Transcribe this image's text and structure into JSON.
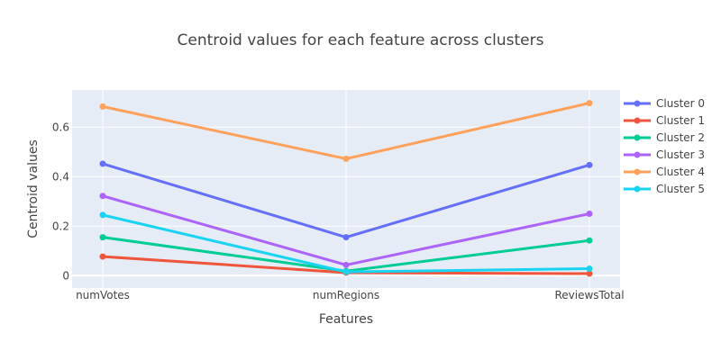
{
  "chart_data": {
    "type": "line",
    "title": "Centroid values for each feature across clusters",
    "xlabel": "Features",
    "ylabel": "Centroid values",
    "categories": [
      "numVotes",
      "numRegions",
      "ReviewsTotal"
    ],
    "y_ticks": [
      0,
      0.2,
      0.4,
      0.6
    ],
    "y_tick_labels": [
      "0",
      "0.2",
      "0.4",
      "0.6"
    ],
    "ylim": [
      -0.05,
      0.75
    ],
    "grid": true,
    "legend_position": "right",
    "series": [
      {
        "name": "Cluster 0",
        "color": "#636efa",
        "values": [
          0.452,
          0.155,
          0.447
        ]
      },
      {
        "name": "Cluster 1",
        "color": "#ef553b",
        "values": [
          0.077,
          0.012,
          0.008
        ]
      },
      {
        "name": "Cluster 2",
        "color": "#00cc96",
        "values": [
          0.155,
          0.018,
          0.142
        ]
      },
      {
        "name": "Cluster 3",
        "color": "#ab63fa",
        "values": [
          0.322,
          0.043,
          0.25
        ]
      },
      {
        "name": "Cluster 4",
        "color": "#ffa15a",
        "values": [
          0.683,
          0.472,
          0.697
        ]
      },
      {
        "name": "Cluster 5",
        "color": "#19d3f3",
        "values": [
          0.245,
          0.015,
          0.028
        ]
      }
    ]
  }
}
